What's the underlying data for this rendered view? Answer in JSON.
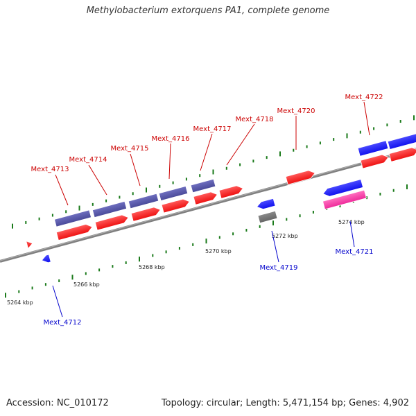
{
  "title": "Methylobacterium extorquens PA1, complete genome",
  "footer": {
    "accession": "Accession: NC_010172",
    "summary": "Topology: circular; Length: 5,471,154 bp; Genes: 4,902"
  },
  "colors": {
    "background": "#ffffff",
    "backbone": "#808080",
    "tick": "#1a7a1a",
    "forward_label": "#cc0000",
    "reverse_label": "#0000cc",
    "cds_red": "#ee1111",
    "cds_blue": "#1111ee",
    "cds_purple": "#4a4a99",
    "cds_pink": "#ee2a9a",
    "cds_grey": "#666666"
  },
  "scale_labels": [
    "5264 kbp",
    "5266 kbp",
    "5268 kbp",
    "5270 kbp",
    "5272 kbp",
    "5274 kbp"
  ],
  "gene_labels": [
    {
      "text": "Mext_4713",
      "strand": "forward"
    },
    {
      "text": "Mext_4714",
      "strand": "forward"
    },
    {
      "text": "Mext_4715",
      "strand": "forward"
    },
    {
      "text": "Mext_4716",
      "strand": "forward"
    },
    {
      "text": "Mext_4717",
      "strand": "forward"
    },
    {
      "text": "Mext_4718",
      "strand": "forward"
    },
    {
      "text": "Mext_4720",
      "strand": "forward"
    },
    {
      "text": "Mext_4722",
      "strand": "forward"
    },
    {
      "text": "Mext_4712",
      "strand": "reverse"
    },
    {
      "text": "Mext_4719",
      "strand": "reverse"
    },
    {
      "text": "Mext_4721",
      "strand": "reverse"
    }
  ]
}
